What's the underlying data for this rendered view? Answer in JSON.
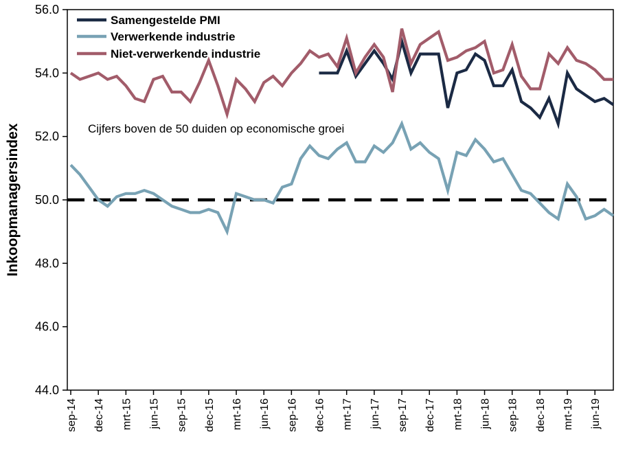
{
  "chart_data": {
    "type": "line",
    "title": "",
    "ylabel": "Inkoopmanagersindex",
    "xlabel": "",
    "ylim": [
      44.0,
      56.0
    ],
    "ytick_step": 2.0,
    "ytick_labels": [
      "56.0",
      "54.0",
      "52.0",
      "50.0",
      "48.0",
      "46.0",
      "44.0"
    ],
    "grid": false,
    "legend_position": "top-left",
    "annotation": "Cijfers boven de 50 duiden op economische groei",
    "reference_line": {
      "value": 50.0,
      "style": "dashed",
      "color": "#000000"
    },
    "x": [
      "sep-14",
      "okt-14",
      "nov-14",
      "dec-14",
      "jan-15",
      "feb-15",
      "mrt-15",
      "apr-15",
      "mei-15",
      "jun-15",
      "jul-15",
      "aug-15",
      "sep-15",
      "okt-15",
      "nov-15",
      "dec-15",
      "jan-16",
      "feb-16",
      "mrt-16",
      "apr-16",
      "mei-16",
      "jun-16",
      "jul-16",
      "aug-16",
      "sep-16",
      "okt-16",
      "nov-16",
      "dec-16",
      "jan-17",
      "feb-17",
      "mrt-17",
      "apr-17",
      "mei-17",
      "jun-17",
      "jul-17",
      "aug-17",
      "sep-17",
      "okt-17",
      "nov-17",
      "dec-17",
      "jan-18",
      "feb-18",
      "mrt-18",
      "apr-18",
      "mei-18",
      "jun-18",
      "jul-18",
      "aug-18",
      "sep-18",
      "okt-18",
      "nov-18",
      "dec-18",
      "jan-19",
      "feb-19",
      "mrt-19",
      "apr-19",
      "mei-19",
      "jun-19",
      "jul-19",
      "aug-19"
    ],
    "xtick_every": 3,
    "series": [
      {
        "name": "Samengestelde PMI",
        "color": "#1b2a44",
        "start_index": 27,
        "values": [
          54.0,
          54.0,
          54.0,
          54.7,
          53.9,
          54.3,
          54.7,
          54.3,
          53.8,
          55.0,
          54.0,
          54.6,
          54.6,
          54.6,
          52.9,
          54.0,
          54.1,
          54.6,
          54.4,
          53.6,
          53.6,
          54.1,
          53.1,
          52.9,
          52.6,
          53.2,
          52.4,
          54.0,
          53.5,
          53.3,
          53.1,
          53.2,
          53.0
        ]
      },
      {
        "name": "Verwerkende industrie",
        "color": "#78a2b4",
        "start_index": 0,
        "values": [
          51.1,
          50.8,
          50.4,
          50.0,
          49.8,
          50.1,
          50.2,
          50.2,
          50.3,
          50.2,
          50.0,
          49.8,
          49.7,
          49.6,
          49.6,
          49.7,
          49.6,
          49.0,
          50.2,
          50.1,
          50.0,
          50.0,
          49.9,
          50.4,
          50.5,
          51.3,
          51.7,
          51.4,
          51.3,
          51.6,
          51.8,
          51.2,
          51.2,
          51.7,
          51.5,
          51.8,
          52.4,
          51.6,
          51.8,
          51.5,
          51.3,
          50.3,
          51.5,
          51.4,
          51.9,
          51.6,
          51.2,
          51.3,
          50.8,
          50.3,
          50.2,
          49.9,
          49.6,
          49.4,
          50.5,
          50.1,
          49.4,
          49.5,
          49.7,
          49.5
        ]
      },
      {
        "name": "Niet-verwerkende industrie",
        "color": "#a25c6a",
        "start_index": 0,
        "values": [
          54.0,
          53.8,
          53.9,
          54.0,
          53.8,
          53.9,
          53.6,
          53.2,
          53.1,
          53.8,
          53.9,
          53.4,
          53.4,
          53.1,
          53.7,
          54.4,
          53.6,
          52.7,
          53.8,
          53.5,
          53.1,
          53.7,
          53.9,
          53.6,
          54.0,
          54.3,
          54.7,
          54.5,
          54.6,
          54.2,
          55.1,
          54.0,
          54.5,
          54.9,
          54.5,
          53.4,
          55.4,
          54.3,
          54.9,
          55.1,
          55.3,
          54.4,
          54.5,
          54.7,
          54.8,
          55.0,
          54.0,
          54.1,
          54.9,
          53.9,
          53.5,
          53.5,
          54.6,
          54.3,
          54.8,
          54.4,
          54.3,
          54.1,
          53.8,
          53.8
        ]
      }
    ]
  }
}
